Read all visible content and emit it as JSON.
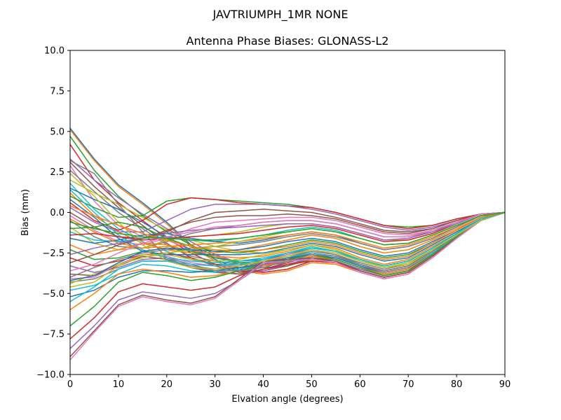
{
  "figure": {
    "suptitle": "JAVTRIUMPH_1MR  NONE"
  },
  "chart_data": {
    "type": "line",
    "title": "Antenna Phase Biases: GLONASS-L2",
    "xlabel": "Elvation angle (degrees)",
    "ylabel": "Bias (mm)",
    "xlim": [
      0,
      90
    ],
    "ylim": [
      -10,
      10
    ],
    "xticks": [
      0,
      10,
      20,
      30,
      40,
      50,
      60,
      70,
      80,
      90
    ],
    "xtick_labels": [
      "0",
      "10",
      "20",
      "30",
      "40",
      "50",
      "60",
      "70",
      "80",
      "90"
    ],
    "yticks": [
      -10,
      -7.5,
      -5,
      -2.5,
      0,
      2.5,
      5,
      7.5,
      10
    ],
    "ytick_labels": [
      "−10.0",
      "−7.5",
      "−5.0",
      "−2.5",
      "0.0",
      "2.5",
      "5.0",
      "7.5",
      "10.0"
    ],
    "grid": false,
    "legend": "none",
    "colors": [
      "#1f77b4",
      "#ff7f0e",
      "#2ca02c",
      "#d62728",
      "#9467bd",
      "#8c564b",
      "#e377c2",
      "#7f7f7f",
      "#bcbd22",
      "#17becf"
    ],
    "x": [
      0,
      5,
      10,
      15,
      20,
      25,
      30,
      35,
      40,
      45,
      50,
      55,
      60,
      65,
      70,
      75,
      80,
      85,
      90
    ],
    "series": [
      {
        "values": [
          5.2,
          3.3,
          1.7,
          0.6,
          -0.6,
          -2.0,
          -2.9,
          -3.5,
          -3.7,
          -3.5,
          -3.0,
          -3.1,
          -3.6,
          -4.0,
          -3.7,
          -2.7,
          -1.5,
          -0.5,
          0.0
        ]
      },
      {
        "values": [
          5.1,
          3.2,
          1.6,
          0.5,
          -0.7,
          -2.1,
          -3.0,
          -3.6,
          -3.8,
          -3.6,
          -3.1,
          -3.2,
          -3.7,
          -4.1,
          -3.8,
          -2.8,
          -1.6,
          -0.5,
          0.0
        ]
      },
      {
        "values": [
          4.7,
          2.6,
          1.0,
          -0.2,
          -1.2,
          -2.0,
          -2.7,
          -3.2,
          -3.4,
          -3.3,
          -2.9,
          -3.0,
          -3.5,
          -3.9,
          -3.6,
          -2.6,
          -1.5,
          -0.5,
          0.0
        ]
      },
      {
        "values": [
          4.2,
          2.0,
          0.6,
          -0.5,
          -1.6,
          -2.5,
          -3.2,
          -3.6,
          -3.7,
          -3.5,
          -3.0,
          -3.1,
          -3.5,
          -3.9,
          -3.6,
          -2.6,
          -1.5,
          -0.5,
          0.0
        ]
      },
      {
        "values": [
          3.3,
          2.0,
          0.9,
          -0.1,
          -1.0,
          -1.8,
          -2.6,
          -3.1,
          -3.3,
          -3.1,
          -2.7,
          -2.8,
          -3.3,
          -3.7,
          -3.4,
          -2.5,
          -1.4,
          -0.5,
          0.0
        ]
      },
      {
        "values": [
          3.1,
          1.6,
          0.3,
          -0.8,
          -1.9,
          -2.8,
          -3.3,
          -3.7,
          -3.6,
          -3.3,
          -2.8,
          -2.9,
          -3.4,
          -3.8,
          -3.5,
          -2.5,
          -1.5,
          -0.5,
          0.0
        ]
      },
      {
        "values": [
          2.9,
          0.7,
          -0.8,
          -1.5,
          -1.7,
          -2.3,
          -2.7,
          -3.1,
          -3.2,
          -3.0,
          -2.5,
          -2.7,
          -3.2,
          -3.6,
          -3.3,
          -2.4,
          -1.4,
          -0.5,
          0.0
        ]
      },
      {
        "values": [
          2.6,
          1.3,
          0.0,
          -1.0,
          -2.0,
          -2.7,
          -3.0,
          -3.2,
          -3.1,
          -2.8,
          -2.4,
          -2.6,
          -3.1,
          -3.5,
          -3.2,
          -2.3,
          -1.4,
          -0.5,
          0.0
        ]
      },
      {
        "values": [
          2.0,
          1.2,
          0.5,
          -0.3,
          -1.1,
          -1.7,
          -2.1,
          -2.4,
          -2.5,
          -2.3,
          -2.0,
          -2.3,
          -2.9,
          -3.3,
          -3.0,
          -2.2,
          -1.3,
          -0.4,
          0.0
        ]
      },
      {
        "values": [
          1.8,
          0.2,
          -1.0,
          -1.8,
          -2.4,
          -2.9,
          -3.2,
          -3.2,
          -2.9,
          -2.5,
          -2.1,
          -2.4,
          -3.0,
          -3.4,
          -3.1,
          -2.3,
          -1.4,
          -0.5,
          0.0
        ]
      },
      {
        "values": [
          1.5,
          0.8,
          0.2,
          -0.6,
          -1.5,
          -2.3,
          -2.8,
          -3.0,
          -2.9,
          -2.6,
          -2.2,
          -2.4,
          -2.9,
          -3.3,
          -3.0,
          -2.2,
          -1.3,
          -0.4,
          0.0
        ]
      },
      {
        "values": [
          1.2,
          -0.2,
          -1.2,
          -1.9,
          -2.3,
          -2.5,
          -2.7,
          -2.8,
          -2.7,
          -2.4,
          -2.0,
          -2.2,
          -2.8,
          -3.2,
          -2.9,
          -2.1,
          -1.3,
          -0.4,
          0.0
        ]
      },
      {
        "values": [
          1.0,
          0.3,
          -0.3,
          -0.2,
          0.7,
          0.9,
          0.8,
          0.7,
          0.6,
          0.5,
          0.3,
          0.0,
          -0.4,
          -0.8,
          -0.9,
          -0.8,
          -0.4,
          -0.1,
          0.0
        ]
      },
      {
        "values": [
          0.6,
          -0.5,
          -1.1,
          -0.5,
          0.5,
          0.9,
          0.8,
          0.6,
          0.5,
          0.4,
          0.3,
          0.0,
          -0.4,
          -0.8,
          -1.0,
          -0.8,
          -0.4,
          -0.1,
          0.0
        ]
      },
      {
        "values": [
          0.3,
          -0.6,
          -1.2,
          -1.2,
          -0.5,
          0.2,
          0.5,
          0.5,
          0.5,
          0.4,
          0.2,
          -0.1,
          -0.5,
          -0.9,
          -1.1,
          -0.9,
          -0.5,
          -0.1,
          0.0
        ]
      },
      {
        "values": [
          0.0,
          -0.9,
          -1.5,
          -1.6,
          -1.1,
          -0.6,
          -0.3,
          -0.2,
          -0.2,
          -0.1,
          -0.2,
          -0.4,
          -0.8,
          -1.2,
          -1.3,
          -1.0,
          -0.5,
          -0.1,
          0.0
        ]
      },
      {
        "values": [
          -0.2,
          -1.1,
          -1.8,
          -2.0,
          -1.6,
          -1.0,
          -0.6,
          -0.5,
          -0.4,
          -0.3,
          -0.3,
          -0.5,
          -0.9,
          -1.3,
          -1.4,
          -1.1,
          -0.6,
          -0.1,
          0.0
        ]
      },
      {
        "values": [
          -0.5,
          -1.5,
          -2.1,
          -2.2,
          -1.8,
          -1.3,
          -1.0,
          -0.8,
          -0.6,
          -0.5,
          -0.5,
          -0.7,
          -1.1,
          -1.5,
          -1.5,
          -1.2,
          -0.6,
          -0.1,
          0.0
        ]
      },
      {
        "values": [
          -0.9,
          -1.9,
          -2.3,
          -2.2,
          -1.7,
          -1.5,
          -1.4,
          -1.2,
          -0.9,
          -0.7,
          -0.7,
          -0.9,
          -1.3,
          -1.7,
          -1.7,
          -1.3,
          -0.7,
          -0.1,
          0.0
        ]
      },
      {
        "values": [
          -1.2,
          -1.7,
          -1.8,
          -1.6,
          -1.5,
          -1.7,
          -1.8,
          -1.6,
          -1.4,
          -1.1,
          -0.9,
          -1.1,
          -1.6,
          -2.0,
          -1.9,
          -1.4,
          -0.8,
          -0.2,
          0.0
        ]
      },
      {
        "values": [
          -1.6,
          -1.9,
          -1.7,
          -1.4,
          -1.3,
          -1.6,
          -1.8,
          -1.9,
          -1.7,
          -1.4,
          -1.2,
          -1.4,
          -1.9,
          -2.3,
          -2.1,
          -1.6,
          -0.9,
          -0.2,
          0.0
        ]
      },
      {
        "values": [
          -2.0,
          -2.6,
          -2.3,
          -1.9,
          -2.0,
          -2.4,
          -2.5,
          -2.3,
          -2.0,
          -1.7,
          -1.4,
          -1.6,
          -2.1,
          -2.5,
          -2.3,
          -1.7,
          -1.0,
          -0.3,
          0.0
        ]
      },
      {
        "values": [
          -2.3,
          -2.9,
          -2.8,
          -2.4,
          -2.2,
          -2.4,
          -2.8,
          -3.1,
          -3.0,
          -2.6,
          -2.2,
          -2.4,
          -2.9,
          -3.3,
          -3.0,
          -2.2,
          -1.3,
          -0.4,
          0.0
        ]
      },
      {
        "values": [
          -2.8,
          -3.3,
          -3.0,
          -2.6,
          -2.5,
          -2.8,
          -3.2,
          -3.4,
          -3.3,
          -2.9,
          -2.5,
          -2.7,
          -3.2,
          -3.6,
          -3.3,
          -2.4,
          -1.4,
          -0.5,
          0.0
        ]
      },
      {
        "values": [
          -3.3,
          -3.7,
          -3.4,
          -2.9,
          -2.8,
          -3.2,
          -3.6,
          -3.8,
          -3.6,
          -3.2,
          -2.8,
          -3.0,
          -3.5,
          -3.9,
          -3.6,
          -2.6,
          -1.5,
          -0.5,
          0.0
        ]
      },
      {
        "values": [
          -3.8,
          -3.9,
          -3.3,
          -2.7,
          -2.9,
          -3.4,
          -3.7,
          -3.8,
          -3.5,
          -3.1,
          -2.7,
          -2.9,
          -3.4,
          -3.8,
          -3.5,
          -2.6,
          -1.5,
          -0.5,
          0.0
        ]
      },
      {
        "values": [
          -4.1,
          -4.0,
          -3.2,
          -2.6,
          -2.7,
          -3.1,
          -3.3,
          -3.3,
          -3.0,
          -2.6,
          -2.3,
          -2.6,
          -3.2,
          -3.7,
          -3.4,
          -2.5,
          -1.5,
          -0.5,
          0.0
        ]
      },
      {
        "values": [
          -4.3,
          -4.1,
          -3.5,
          -3.0,
          -3.0,
          -3.3,
          -3.5,
          -3.4,
          -3.1,
          -2.7,
          -2.4,
          -2.6,
          -3.2,
          -3.7,
          -3.4,
          -2.5,
          -1.5,
          -0.5,
          0.0
        ]
      },
      {
        "values": [
          -4.6,
          -4.3,
          -3.3,
          -2.6,
          -2.6,
          -2.9,
          -3.0,
          -2.9,
          -2.6,
          -2.3,
          -2.0,
          -2.3,
          -2.9,
          -3.4,
          -3.2,
          -2.4,
          -1.4,
          -0.5,
          0.0
        ]
      },
      {
        "values": [
          -4.8,
          -4.5,
          -3.8,
          -3.2,
          -3.3,
          -3.6,
          -3.7,
          -3.5,
          -3.2,
          -2.8,
          -2.5,
          -2.7,
          -3.3,
          -3.8,
          -3.5,
          -2.5,
          -1.5,
          -0.5,
          0.0
        ]
      },
      {
        "values": [
          -5.2,
          -4.8,
          -4.0,
          -3.6,
          -3.6,
          -3.7,
          -3.6,
          -3.4,
          -3.2,
          -2.8,
          -2.6,
          -2.8,
          -3.3,
          -3.8,
          -3.5,
          -2.6,
          -1.5,
          -0.5,
          0.0
        ]
      },
      {
        "values": [
          -6.0,
          -5.0,
          -3.8,
          -3.5,
          -3.7,
          -4.0,
          -3.9,
          -3.6,
          -3.3,
          -3.0,
          -2.7,
          -2.9,
          -3.4,
          -3.8,
          -3.5,
          -2.6,
          -1.5,
          -0.5,
          0.0
        ]
      },
      {
        "values": [
          -7.0,
          -5.8,
          -4.3,
          -3.7,
          -3.9,
          -4.2,
          -4.0,
          -3.6,
          -3.2,
          -2.9,
          -2.6,
          -2.9,
          -3.4,
          -3.9,
          -3.6,
          -2.6,
          -1.5,
          -0.5,
          0.0
        ]
      },
      {
        "values": [
          -7.8,
          -6.5,
          -4.9,
          -4.4,
          -4.6,
          -4.8,
          -4.6,
          -3.9,
          -3.5,
          -3.2,
          -3.0,
          -3.1,
          -3.6,
          -4.0,
          -3.7,
          -2.7,
          -1.6,
          -0.5,
          0.0
        ]
      },
      {
        "values": [
          -8.4,
          -7.0,
          -5.4,
          -4.9,
          -5.1,
          -5.3,
          -5.0,
          -4.2,
          -3.2,
          -3.0,
          -2.8,
          -3.0,
          -3.6,
          -4.0,
          -3.7,
          -2.7,
          -1.6,
          -0.5,
          0.0
        ]
      },
      {
        "values": [
          -8.9,
          -7.3,
          -5.7,
          -5.1,
          -5.4,
          -5.6,
          -5.2,
          -4.1,
          -3.0,
          -2.9,
          -2.8,
          -3.0,
          -3.6,
          -4.0,
          -3.7,
          -2.7,
          -1.6,
          -0.5,
          0.0
        ]
      },
      {
        "values": [
          -9.1,
          -7.4,
          -5.8,
          -5.2,
          -5.5,
          -5.7,
          -5.3,
          -4.2,
          -3.1,
          -3.0,
          -2.9,
          -3.1,
          -3.7,
          -4.1,
          -3.8,
          -2.8,
          -1.6,
          -0.5,
          0.0
        ]
      },
      {
        "values": [
          3.2,
          2.4,
          0.5,
          -1.2,
          -2.8,
          -3.4,
          -3.6,
          -3.6,
          -3.4,
          -3.0,
          -2.6,
          -2.7,
          -3.2,
          -3.6,
          -3.3,
          -2.4,
          -1.4,
          -0.5,
          0.0
        ]
      },
      {
        "values": [
          2.4,
          1.0,
          -0.6,
          -2.0,
          -3.0,
          -3.4,
          -3.5,
          -3.3,
          -3.0,
          -2.7,
          -2.3,
          -2.5,
          -3.0,
          -3.4,
          -3.1,
          -2.3,
          -1.4,
          -0.5,
          0.0
        ]
      },
      {
        "values": [
          1.4,
          0.0,
          -1.4,
          -2.3,
          -2.8,
          -3.0,
          -3.1,
          -3.0,
          -2.8,
          -2.5,
          -2.2,
          -2.4,
          -2.9,
          -3.3,
          -3.0,
          -2.2,
          -1.3,
          -0.4,
          0.0
        ]
      },
      {
        "values": [
          0.8,
          -0.3,
          -1.6,
          -2.4,
          -2.6,
          -2.6,
          -2.6,
          -2.6,
          -2.5,
          -2.2,
          -1.9,
          -2.1,
          -2.6,
          -3.0,
          -2.8,
          -2.0,
          -1.2,
          -0.4,
          0.0
        ]
      },
      {
        "values": [
          -0.4,
          -1.2,
          -1.9,
          -2.2,
          -2.1,
          -2.0,
          -1.9,
          -1.8,
          -1.6,
          -1.4,
          -1.2,
          -1.4,
          -1.8,
          -2.2,
          -2.0,
          -1.5,
          -0.9,
          -0.2,
          0.0
        ]
      },
      {
        "values": [
          -1.0,
          -0.9,
          -0.6,
          -0.9,
          -1.6,
          -2.1,
          -2.4,
          -2.5,
          -2.3,
          -2.0,
          -1.7,
          -1.9,
          -2.4,
          -2.8,
          -2.6,
          -1.9,
          -1.1,
          -0.3,
          0.0
        ]
      },
      {
        "values": [
          -1.4,
          -1.3,
          -1.5,
          -1.7,
          -1.6,
          -1.5,
          -1.4,
          -1.3,
          -1.1,
          -0.9,
          -0.8,
          -1.0,
          -1.4,
          -1.8,
          -1.7,
          -1.3,
          -0.7,
          -0.1,
          0.0
        ]
      },
      {
        "values": [
          -2.6,
          -2.2,
          -1.9,
          -1.6,
          -1.3,
          -1.1,
          -1.0,
          -0.9,
          -0.8,
          -0.7,
          -0.7,
          -0.9,
          -1.3,
          -1.7,
          -1.6,
          -1.2,
          -0.7,
          -0.1,
          0.0
        ]
      },
      {
        "values": [
          -3.1,
          -2.6,
          -2.0,
          -1.6,
          -1.2,
          -0.5,
          0.0,
          0.1,
          0.2,
          0.1,
          0.0,
          -0.3,
          -0.7,
          -1.1,
          -1.2,
          -1.0,
          -0.5,
          -0.1,
          0.0
        ]
      },
      {
        "values": [
          -3.6,
          -3.2,
          -2.5,
          -1.9,
          -1.5,
          -1.2,
          -0.9,
          -0.8,
          -0.6,
          -0.5,
          -0.5,
          -0.7,
          -1.1,
          -1.5,
          -1.5,
          -1.1,
          -0.6,
          -0.1,
          0.0
        ]
      },
      {
        "values": [
          -4.0,
          -3.4,
          -2.9,
          -2.5,
          -2.3,
          -2.2,
          -2.1,
          -2.0,
          -1.8,
          -1.5,
          -1.3,
          -1.5,
          -1.9,
          -2.3,
          -2.1,
          -1.6,
          -0.9,
          -0.2,
          0.0
        ]
      },
      {
        "values": [
          -4.4,
          -3.8,
          -3.2,
          -2.8,
          -2.5,
          -2.3,
          -2.1,
          -1.8,
          -1.5,
          -1.2,
          -1.0,
          -1.2,
          -1.6,
          -2.0,
          -1.9,
          -1.4,
          -0.8,
          -0.2,
          0.0
        ]
      },
      {
        "values": [
          -5.5,
          -4.6,
          -3.5,
          -3.0,
          -3.0,
          -3.2,
          -3.3,
          -3.2,
          -2.9,
          -2.5,
          -2.2,
          -2.4,
          -2.9,
          -3.3,
          -3.0,
          -2.2,
          -1.3,
          -0.4,
          0.0
        ]
      },
      {
        "values": [
          -4.2,
          -3.9,
          -3.1,
          -2.4,
          -2.2,
          -2.3,
          -2.4,
          -2.3,
          -2.1,
          -1.8,
          -1.6,
          -1.8,
          -2.3,
          -2.7,
          -2.5,
          -1.8,
          -1.1,
          -0.3,
          0.0
        ]
      },
      {
        "values": [
          0.4,
          -0.2,
          -0.8,
          -1.3,
          -1.7,
          -2.1,
          -2.3,
          -2.4,
          -2.3,
          -2.1,
          -1.8,
          -2.0,
          -2.5,
          -2.9,
          -2.7,
          -1.9,
          -1.1,
          -0.3,
          0.0
        ]
      },
      {
        "values": [
          -0.6,
          -1.0,
          -1.3,
          -1.5,
          -1.6,
          -1.7,
          -1.7,
          -1.6,
          -1.4,
          -1.2,
          -1.0,
          -1.2,
          -1.6,
          -2.0,
          -1.9,
          -1.4,
          -0.8,
          -0.2,
          0.0
        ]
      }
    ]
  }
}
